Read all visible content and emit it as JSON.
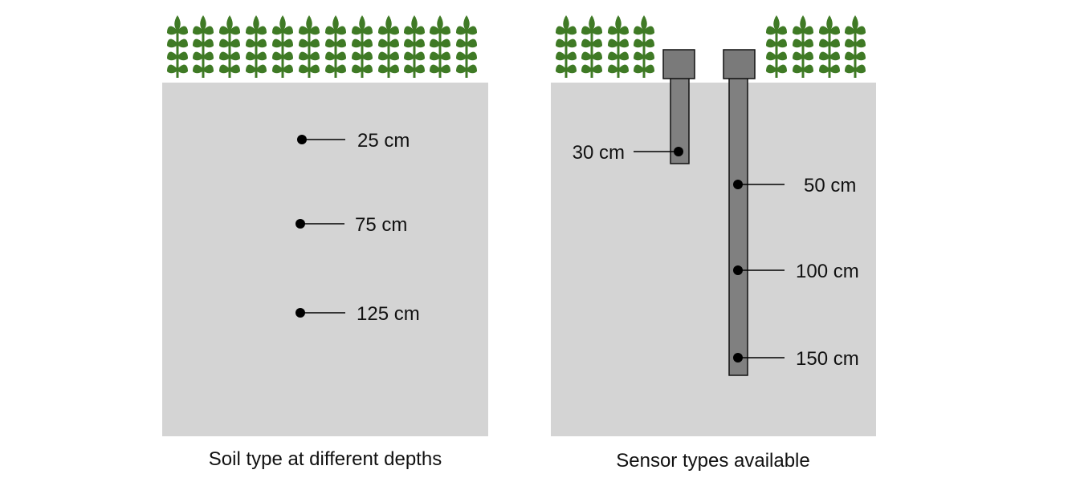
{
  "colors": {
    "soil": "#d4d4d4",
    "wheat": "#3f7a25",
    "sensor_body": "#808080",
    "sensor_cap": "#7a7a7a",
    "outline": "#111111",
    "marker": "#000000"
  },
  "icons": {
    "crop": "wheat-icon",
    "marker": "sensor-point-icon"
  },
  "left_panel": {
    "caption": "Soil type at different depths",
    "depths": [
      {
        "label": "25 cm"
      },
      {
        "label": "75 cm"
      },
      {
        "label": "125 cm"
      }
    ]
  },
  "right_panel": {
    "caption": "Sensor types available",
    "short_sensor": {
      "depths": [
        {
          "label": "30 cm"
        }
      ]
    },
    "long_sensor": {
      "depths": [
        {
          "label": "50 cm"
        },
        {
          "label": "100 cm"
        },
        {
          "label": "150 cm"
        }
      ]
    }
  }
}
